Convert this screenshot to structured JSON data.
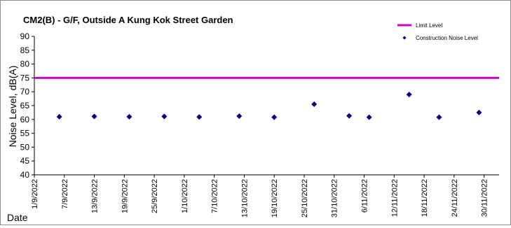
{
  "chart_data": {
    "type": "scatter",
    "title": "CM2(B) - G/F, Outside A Kung Kok Street Garden",
    "ylabel": "Noise Level, dB(A)",
    "xlabel": "Date",
    "ylim": [
      40,
      90
    ],
    "y_ticks": [
      40,
      45,
      50,
      55,
      60,
      65,
      70,
      75,
      80,
      85,
      90
    ],
    "xlim": [
      "2022-09-01",
      "2022-12-03"
    ],
    "x_tick_labels": [
      "1/9/2022",
      "7/9/2022",
      "13/9/2022",
      "19/9/2022",
      "25/9/2022",
      "1/10/2022",
      "7/10/2022",
      "13/10/2022",
      "19/10/2022",
      "25/10/2022",
      "31/10/2022",
      "6/11/2022",
      "12/11/2022",
      "18/11/2022",
      "24/11/2022",
      "30/11/2022"
    ],
    "x_tick_dates": [
      "2022-09-01",
      "2022-09-07",
      "2022-09-13",
      "2022-09-19",
      "2022-09-25",
      "2022-10-01",
      "2022-10-07",
      "2022-10-13",
      "2022-10-19",
      "2022-10-25",
      "2022-10-31",
      "2022-11-06",
      "2022-11-12",
      "2022-11-18",
      "2022-11-24",
      "2022-11-30"
    ],
    "grid": false,
    "legend_position": "top-right",
    "series": [
      {
        "name": "Limit Level",
        "kind": "hline",
        "value": 75,
        "color": "#cc00cc"
      },
      {
        "name": "Construction Noise Level",
        "kind": "points",
        "marker": "diamond",
        "color": "#000080",
        "points": [
          {
            "x": "2022-09-06",
            "y": 61.0
          },
          {
            "x": "2022-09-13",
            "y": 61.1
          },
          {
            "x": "2022-09-20",
            "y": 61.0
          },
          {
            "x": "2022-09-27",
            "y": 61.1
          },
          {
            "x": "2022-10-04",
            "y": 60.9
          },
          {
            "x": "2022-10-12",
            "y": 61.2
          },
          {
            "x": "2022-10-19",
            "y": 60.8
          },
          {
            "x": "2022-10-27",
            "y": 65.5
          },
          {
            "x": "2022-11-03",
            "y": 61.3
          },
          {
            "x": "2022-11-07",
            "y": 60.8
          },
          {
            "x": "2022-11-15",
            "y": 69.0
          },
          {
            "x": "2022-11-21",
            "y": 60.8
          },
          {
            "x": "2022-11-29",
            "y": 62.5
          }
        ]
      }
    ]
  }
}
